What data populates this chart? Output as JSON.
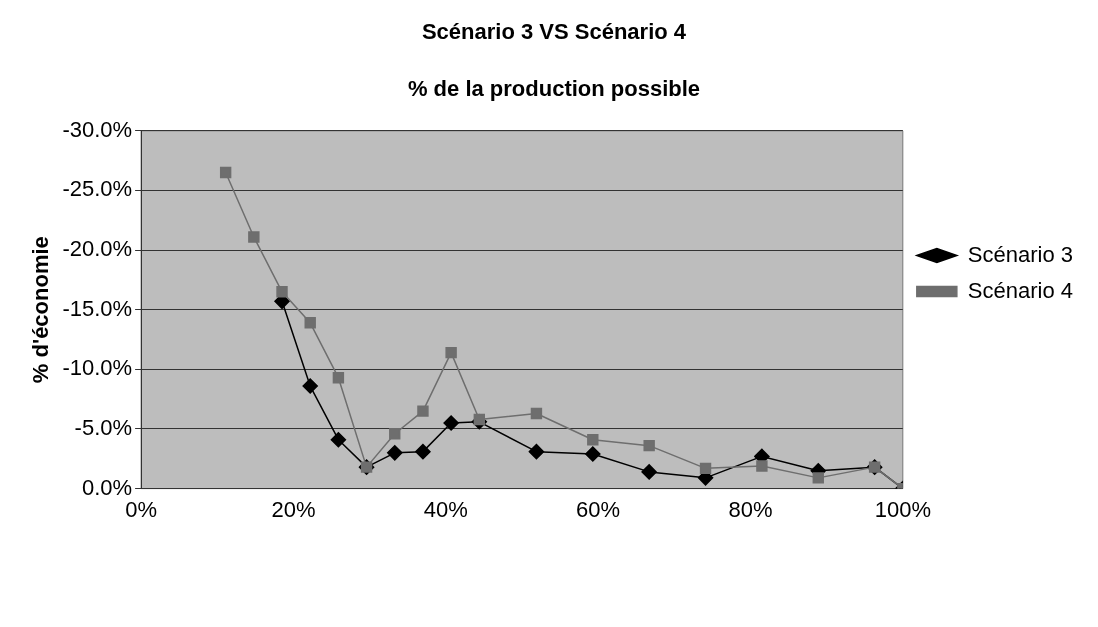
{
  "chart_data": {
    "type": "line",
    "title": "Scénario 3 VS Scénario 4",
    "subtitle": "% de la production possible",
    "ylabel": "% d'économie",
    "x": [
      11.1,
      14.8,
      18.5,
      22.2,
      25.9,
      29.6,
      33.3,
      37.0,
      40.7,
      44.4,
      51.9,
      59.3,
      66.7,
      74.1,
      81.5,
      88.9,
      96.3,
      100
    ],
    "series": [
      {
        "name": "Scénario 3",
        "color": "#000000",
        "marker": "diamond",
        "values": [
          null,
          null,
          -15.7,
          -8.6,
          -4.1,
          -1.8,
          -3.0,
          -3.1,
          -5.5,
          -5.6,
          -3.1,
          -2.9,
          -1.4,
          -0.9,
          -2.7,
          -1.5,
          -1.8,
          0
        ]
      },
      {
        "name": "Scénario 4",
        "color": "#6e6e6e",
        "marker": "square",
        "values": [
          -26.5,
          -21.1,
          -16.5,
          -13.9,
          -9.3,
          -1.8,
          -4.6,
          -6.5,
          -11.4,
          -5.8,
          -6.3,
          -4.1,
          -3.6,
          -1.7,
          -1.9,
          -0.9,
          -1.8,
          0
        ]
      }
    ],
    "xlim": [
      0,
      100
    ],
    "xticks": [
      {
        "value": 0,
        "label": "0%"
      },
      {
        "value": 20,
        "label": "20%"
      },
      {
        "value": 40,
        "label": "40%"
      },
      {
        "value": 60,
        "label": "60%"
      },
      {
        "value": 80,
        "label": "80%"
      },
      {
        "value": 100,
        "label": "100%"
      }
    ],
    "ylim": [
      0,
      -30
    ],
    "yticks": [
      {
        "value": 0,
        "label": "0.0%"
      },
      {
        "value": -5,
        "label": "-5.0%"
      },
      {
        "value": -10,
        "label": "-10.0%"
      },
      {
        "value": -15,
        "label": "-15.0%"
      },
      {
        "value": -20,
        "label": "-20.0%"
      },
      {
        "value": -25,
        "label": "-25.0%"
      },
      {
        "value": -30,
        "label": "-30.0%"
      }
    ],
    "grid": "y",
    "legend": "right",
    "line_style": "solid"
  }
}
